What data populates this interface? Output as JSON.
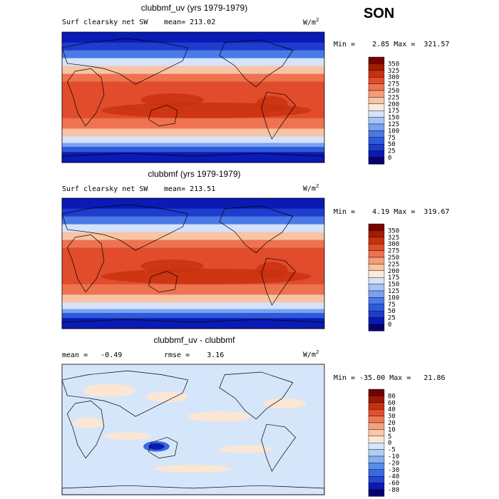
{
  "season": "SON",
  "colors": {
    "abs_palette": [
      "#08006e",
      "#0a1ab4",
      "#1e3ccd",
      "#2e5adc",
      "#4a7ae6",
      "#7aa0f0",
      "#a8c4f6",
      "#d4e2fa",
      "#fbe9dc",
      "#f8c4a4",
      "#f59c78",
      "#ee7350",
      "#e04c2c",
      "#c8300e",
      "#a01c06",
      "#780400"
    ],
    "diff_palette": [
      "#08006e",
      "#0a1ab4",
      "#2446d2",
      "#3a68e0",
      "#5a8cea",
      "#86b0f2",
      "#b0ccf6",
      "#d6e6fa",
      "#fbe6d4",
      "#f8c8a8",
      "#f4a27c",
      "#ee7a54",
      "#e2502e",
      "#c8300e",
      "#9a1a04",
      "#6e0400"
    ]
  },
  "panels": [
    {
      "title": "clubbmf_uv (yrs 1979-1979)",
      "variable": "Surf clearsky net SW",
      "mean": "mean= 213.02",
      "units": "W/m",
      "units_exp": "2",
      "minmax": "Min =    2.85 Max =  321.57"
    },
    {
      "title": "clubbmf (yrs 1979-1979)",
      "variable": "Surf clearsky net SW",
      "mean": "mean= 213.51",
      "units": "W/m",
      "units_exp": "2",
      "minmax": "Min =    4.19 Max =  319.67"
    },
    {
      "title": "clubbmf_uv - clubbmf",
      "variable": "",
      "mean": "mean =   -0.49",
      "rmse": "rmse =    3.16",
      "units": "W/m",
      "units_exp": "2",
      "minmax": "Min = -35.00 Max =   21.86"
    }
  ],
  "chart_data": [
    {
      "type": "heatmap",
      "title": "clubbmf_uv (yrs 1979-1979)",
      "variable": "Surf clearsky net SW",
      "units": "W/m2",
      "mean": 213.02,
      "min": 2.85,
      "max": 321.57,
      "colorbar_levels": [
        350,
        325,
        300,
        275,
        250,
        225,
        200,
        175,
        150,
        125,
        100,
        75,
        50,
        25,
        0
      ]
    },
    {
      "type": "heatmap",
      "title": "clubbmf (yrs 1979-1979)",
      "variable": "Surf clearsky net SW",
      "units": "W/m2",
      "mean": 213.51,
      "min": 4.19,
      "max": 319.67,
      "colorbar_levels": [
        350,
        325,
        300,
        275,
        250,
        225,
        200,
        175,
        150,
        125,
        100,
        75,
        50,
        25,
        0
      ]
    },
    {
      "type": "heatmap",
      "title": "clubbmf_uv - clubbmf",
      "units": "W/m2",
      "mean": -0.49,
      "rmse": 3.16,
      "min": -35.0,
      "max": 21.86,
      "colorbar_levels": [
        80,
        60,
        40,
        30,
        20,
        10,
        5,
        0,
        -5,
        -10,
        -20,
        -30,
        -40,
        -60,
        -80
      ]
    }
  ]
}
